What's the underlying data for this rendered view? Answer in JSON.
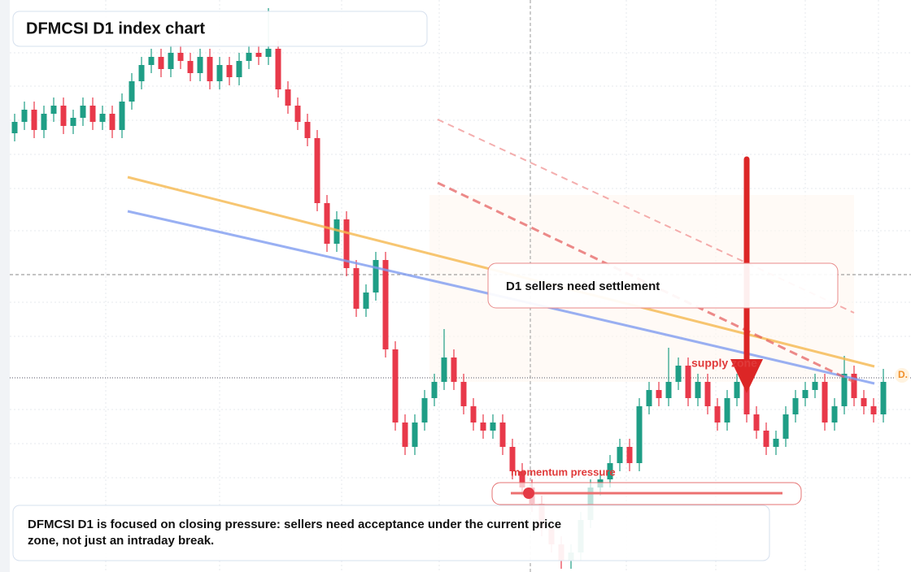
{
  "chart_data": {
    "type": "candlestick",
    "title": "DFMCSI D1 index chart",
    "annotations": {
      "callout": "D1 sellers need settlement",
      "zone": "supply zone",
      "pressure": "momentum pressure",
      "edge_label": "D.",
      "note": "DFMCSI D1 is focused on closing pressure: sellers need acceptance under the current price zone, not just an intraday break."
    },
    "up_color": "#1f9e86",
    "down_color": "#e8394a",
    "ylim": [
      0,
      704
    ],
    "open": [
      540,
      554,
      569,
      544,
      564,
      574,
      549,
      559,
      574,
      554,
      564,
      544,
      579,
      604,
      624,
      634,
      619,
      639,
      629,
      614,
      634,
      604,
      624,
      609,
      629,
      639,
      634,
      644,
      594,
      574,
      554,
      534,
      454,
      404,
      434,
      374,
      324,
      344,
      384,
      274,
      184,
      154,
      184,
      214,
      234,
      264,
      234,
      204,
      184,
      174,
      184,
      154,
      124,
      104,
      84,
      54,
      34,
      14,
      24,
      64,
      104,
      114,
      134,
      154,
      134,
      204,
      224,
      214,
      234,
      254,
      214,
      234,
      204,
      184,
      214,
      234,
      194,
      174,
      154,
      164,
      194,
      214,
      224,
      234,
      184,
      204,
      244,
      214,
      204,
      194
    ],
    "high": [
      564,
      579,
      579,
      574,
      584,
      584,
      569,
      584,
      584,
      574,
      574,
      589,
      614,
      634,
      644,
      644,
      649,
      649,
      639,
      644,
      644,
      634,
      634,
      639,
      649,
      649,
      694,
      654,
      604,
      584,
      564,
      544,
      464,
      444,
      444,
      384,
      354,
      394,
      394,
      284,
      194,
      194,
      224,
      244,
      299,
      274,
      244,
      214,
      194,
      194,
      194,
      164,
      134,
      114,
      94,
      64,
      44,
      34,
      74,
      114,
      124,
      144,
      164,
      164,
      214,
      234,
      234,
      276,
      264,
      264,
      244,
      244,
      214,
      224,
      244,
      244,
      204,
      184,
      174,
      204,
      224,
      234,
      244,
      244,
      214,
      266,
      254,
      224,
      214,
      250
    ],
    "low": [
      530,
      544,
      534,
      534,
      554,
      539,
      539,
      549,
      544,
      544,
      534,
      534,
      569,
      594,
      614,
      609,
      609,
      619,
      604,
      604,
      594,
      594,
      599,
      599,
      619,
      624,
      624,
      584,
      564,
      544,
      524,
      444,
      394,
      394,
      364,
      314,
      314,
      334,
      264,
      174,
      144,
      144,
      174,
      204,
      224,
      224,
      194,
      174,
      164,
      164,
      144,
      114,
      94,
      74,
      44,
      24,
      4,
      4,
      14,
      54,
      94,
      104,
      124,
      124,
      124,
      194,
      204,
      204,
      224,
      204,
      204,
      194,
      174,
      174,
      204,
      184,
      164,
      144,
      144,
      154,
      184,
      204,
      214,
      174,
      174,
      194,
      204,
      194,
      184,
      184
    ],
    "close": [
      554,
      569,
      544,
      564,
      574,
      549,
      559,
      574,
      554,
      564,
      544,
      579,
      604,
      624,
      634,
      619,
      639,
      629,
      614,
      634,
      604,
      624,
      609,
      629,
      639,
      634,
      644,
      594,
      574,
      554,
      534,
      454,
      404,
      434,
      374,
      324,
      344,
      384,
      274,
      184,
      154,
      184,
      214,
      234,
      264,
      234,
      204,
      184,
      174,
      184,
      154,
      124,
      104,
      84,
      54,
      34,
      14,
      24,
      64,
      104,
      114,
      134,
      154,
      134,
      204,
      224,
      214,
      234,
      254,
      214,
      234,
      204,
      184,
      214,
      234,
      194,
      174,
      154,
      164,
      194,
      214,
      224,
      234,
      184,
      204,
      244,
      214,
      204,
      194,
      234
    ]
  }
}
